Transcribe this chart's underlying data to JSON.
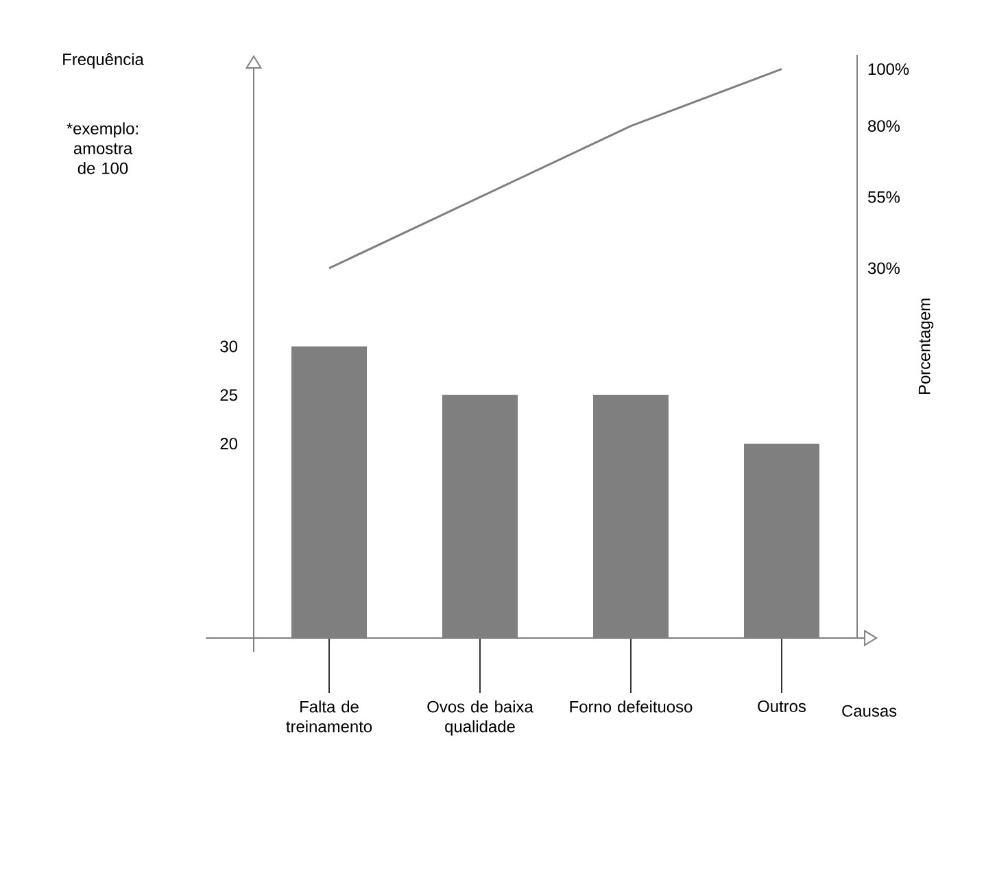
{
  "chart_data": {
    "type": "bar",
    "ylabel": "Frequência",
    "xlabel": "Causas",
    "y2label": "Porcentagem",
    "annotations": [
      "*exemplo: amostra de 100"
    ],
    "categories": [
      "Falta de treinamento",
      "Ovos de baixa qualidade",
      "Forno defeituoso",
      "Outros"
    ],
    "series": [
      {
        "color": "#7f7f7f",
        "values": [
          30,
          25,
          25,
          20
        ]
      },
      {
        "type": "line",
        "axis": "y2",
        "color": "#7f7f7f",
        "values": [
          30,
          55,
          80,
          100
        ]
      }
    ],
    "ylim": [
      0,
      60
    ],
    "yticks": [
      20,
      25,
      30
    ],
    "y2lim": [
      -100,
      105
    ],
    "y2ticks": [
      {
        "value": 30,
        "label": "30%"
      },
      {
        "value": 55,
        "label": "55%"
      },
      {
        "value": 80,
        "label": "80%"
      },
      {
        "value": 100,
        "label": "100%"
      }
    ]
  }
}
